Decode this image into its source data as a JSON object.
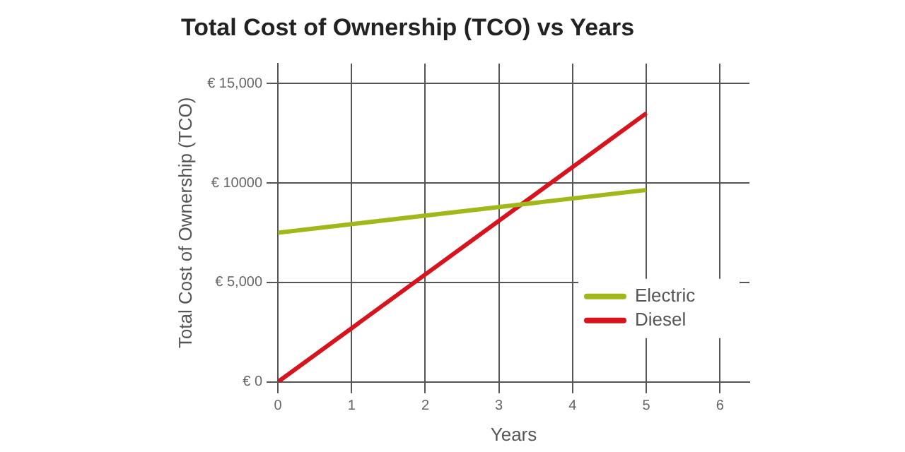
{
  "chart_data": {
    "type": "line",
    "title": "Total Cost of Ownership (TCO) vs Years",
    "xlabel": "Years",
    "ylabel": "Total Cost of Ownership (TCO)",
    "x": [
      0,
      5
    ],
    "series": [
      {
        "name": "Electric",
        "color": "#a2b81a",
        "values": [
          7500,
          9650
        ]
      },
      {
        "name": "Diesel",
        "color": "#d7141e",
        "values": [
          0,
          13500
        ]
      }
    ],
    "xlim": [
      0,
      6.4
    ],
    "xticks": [
      0,
      1,
      2,
      3,
      4,
      5,
      6
    ],
    "ylim": [
      0,
      16000
    ],
    "yticks": [
      {
        "value": 0,
        "label": "€ 0"
      },
      {
        "value": 5000,
        "label": "€ 5,000"
      },
      {
        "value": 10000,
        "label": "€ 10000"
      },
      {
        "value": 15000,
        "label": "€ 15,000"
      }
    ],
    "grid": true,
    "legend": "bottom right",
    "marker": "none",
    "line_style": "solid"
  }
}
